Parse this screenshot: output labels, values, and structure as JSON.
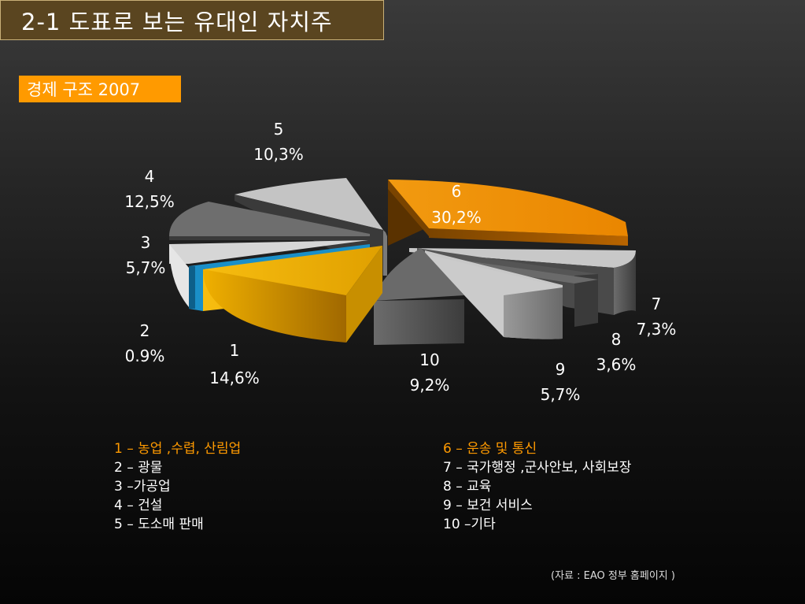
{
  "header": {
    "title": "2-1 도표로 보는 유대인 자치주"
  },
  "subtitle": "경제 구조 2007",
  "chart_data": {
    "type": "pie",
    "title": "경제 구조 2007",
    "categories": [
      "1",
      "2",
      "3",
      "4",
      "5",
      "6",
      "7",
      "8",
      "9",
      "10"
    ],
    "labels_pct": [
      "14,6%",
      "0.9%",
      "5,7%",
      "12,5%",
      "10,3%",
      "30,2%",
      "7,3%",
      "3,6%",
      "5,7%",
      "9,2%"
    ],
    "values": [
      14.6,
      0.9,
      5.7,
      12.5,
      10.3,
      30.2,
      7.3,
      3.6,
      5.7,
      9.2
    ],
    "series_names": [
      "농업 ,수렵, 산림업",
      "광물",
      "가공업",
      "건설",
      "도소매 판매",
      "운송 및 통신",
      "국가행정 ,군사안보, 사회보장",
      "교육",
      "보건 서비스",
      "기타"
    ],
    "colors": [
      "#e8a800",
      "#1a8fc8",
      "#d6d6d6",
      "#707070",
      "#c4c4c4",
      "#f08c00",
      "#c0c0c0",
      "#6a6a6a",
      "#c8c8c8",
      "#6a6a6a"
    ],
    "exploded": true,
    "three_d": true
  },
  "legend": {
    "left": [
      "1 – 농업 ,수렵, 산림업",
      "2 – 광물",
      "3 –가공업",
      "4 – 건설",
      "5 – 도소매 판매"
    ],
    "right": [
      "6 – 운송 및 통신",
      "7 – 국가행정 ,군사안보, 사회보장",
      "8 – 교육",
      "9 – 보건 서비스",
      "10 –기타"
    ]
  },
  "source": "(자료 : EAO 정부 홈페이지 )",
  "colors": {
    "accent": "#ff9a00",
    "title_bg": "#5a4520"
  }
}
